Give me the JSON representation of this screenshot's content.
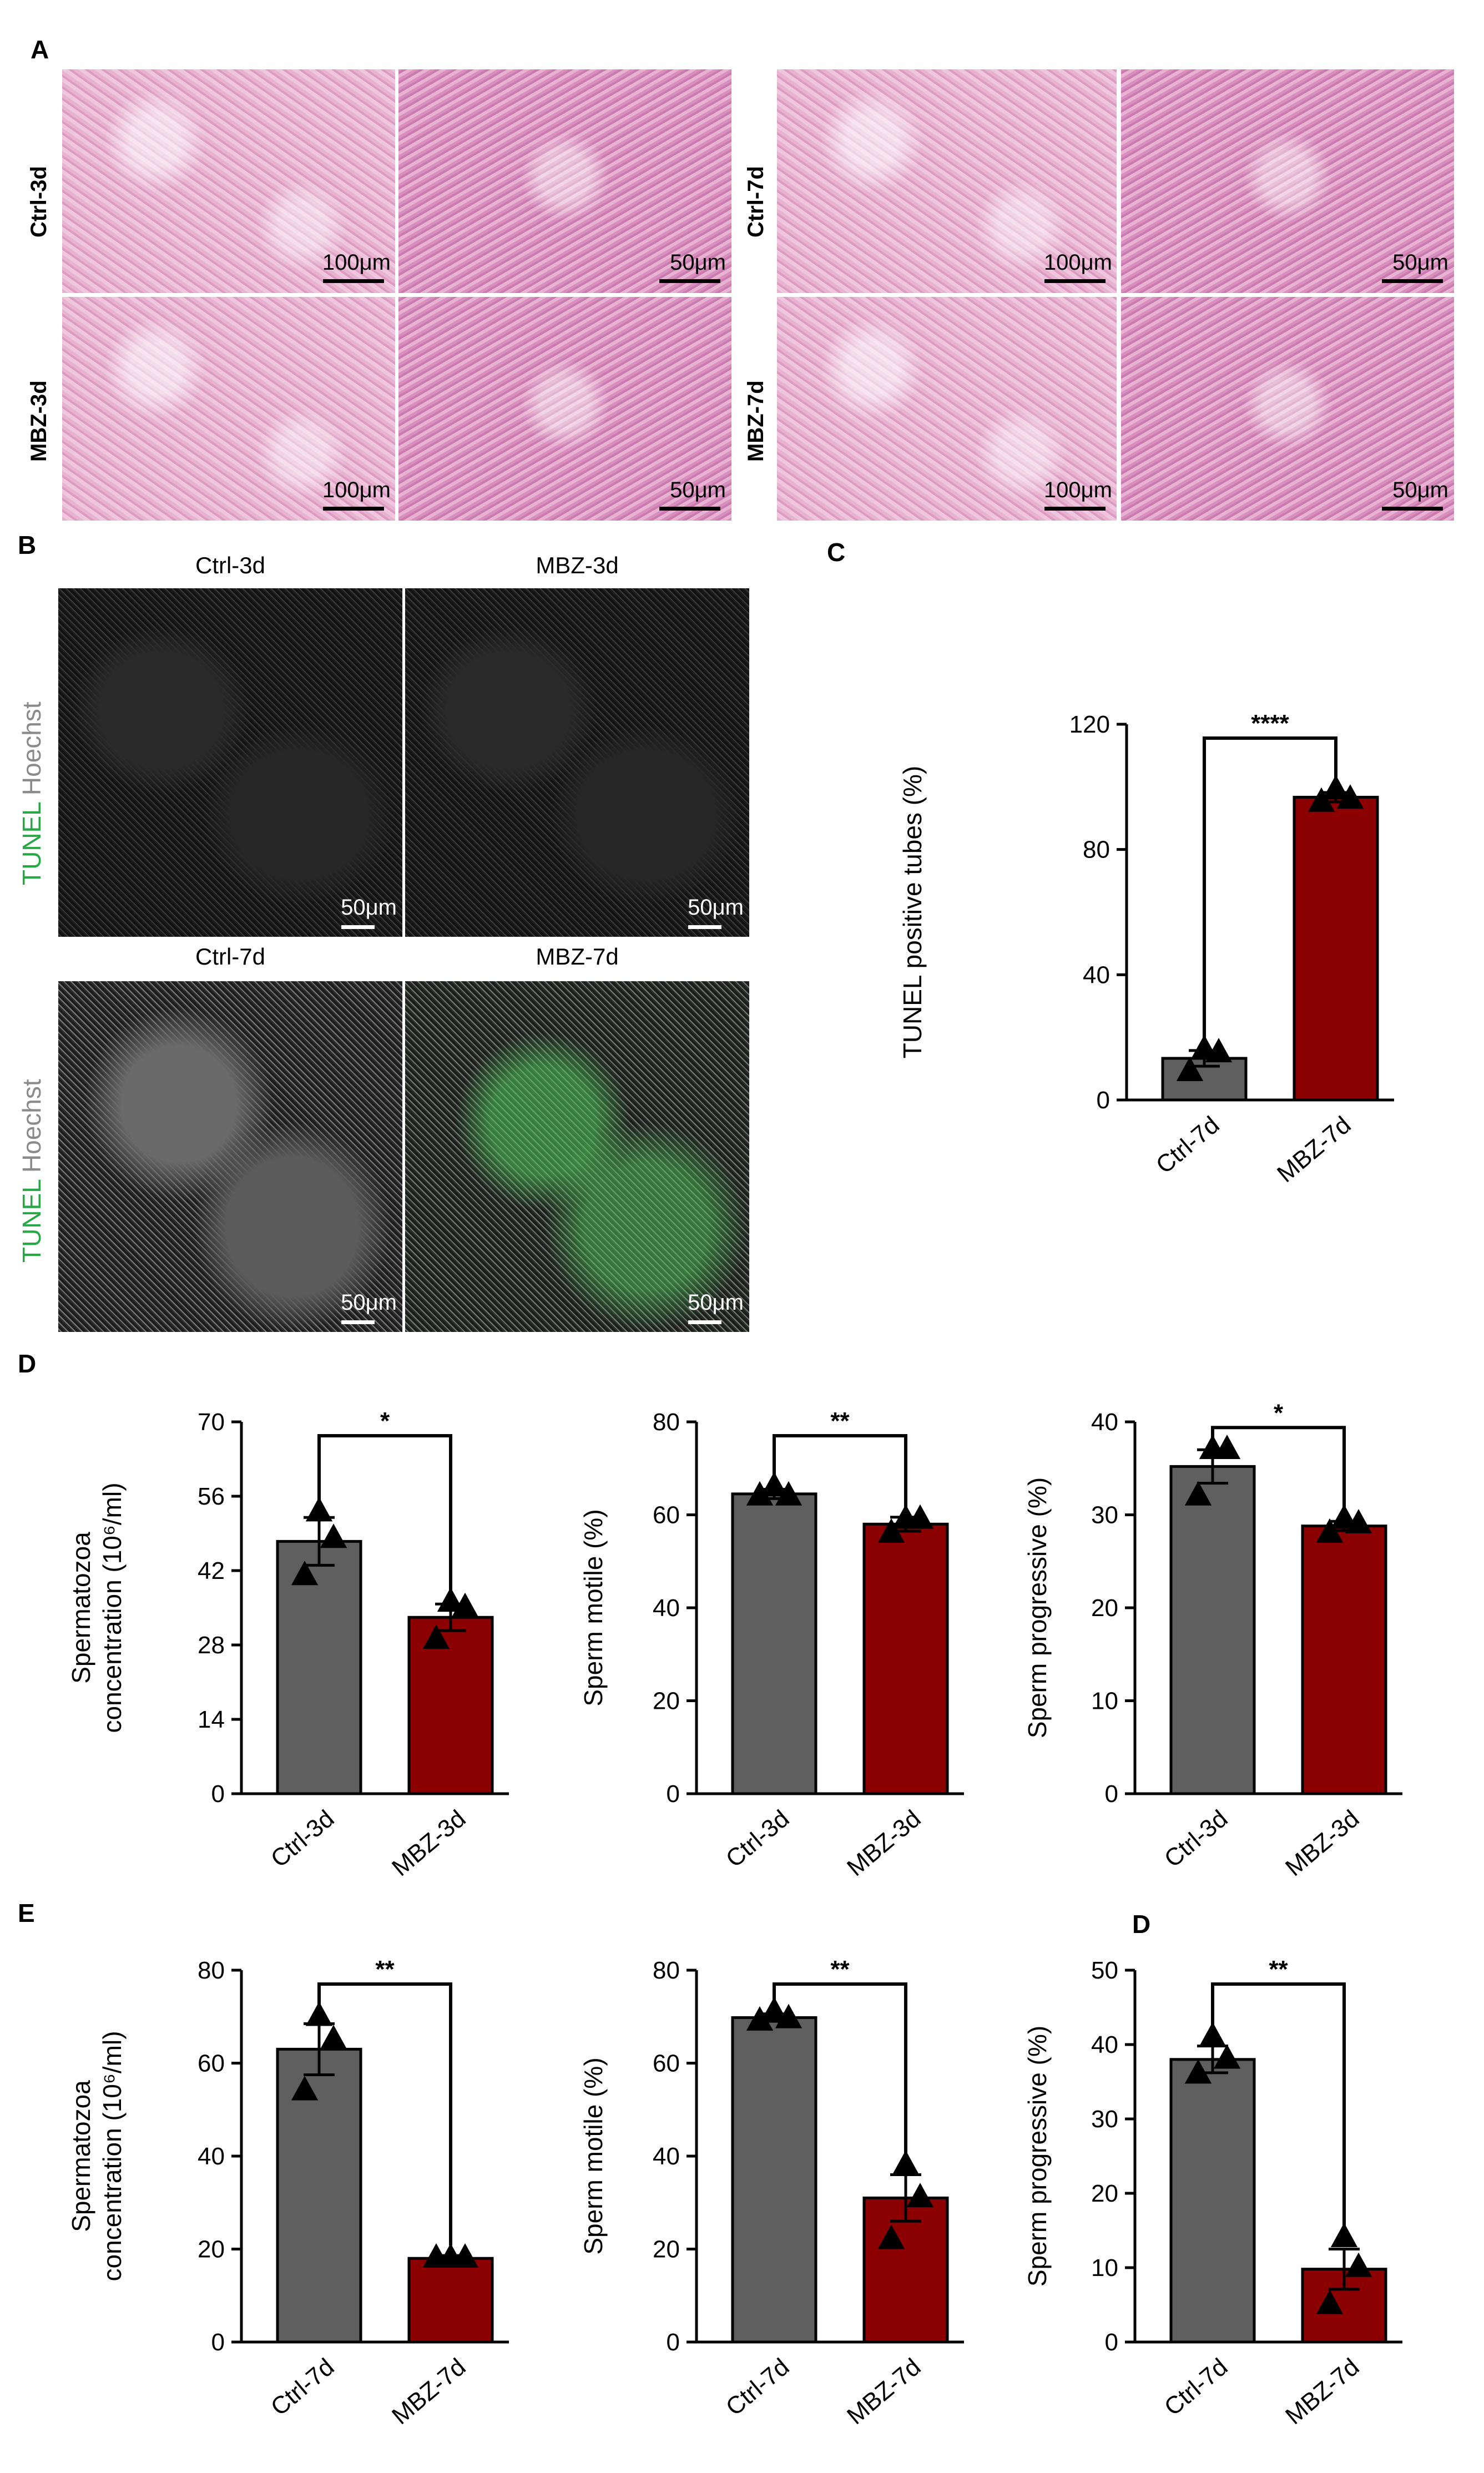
{
  "panel_letters": {
    "A": "A",
    "B": "B",
    "C": "C",
    "D": "D",
    "E": "E",
    "D2": "D"
  },
  "panel_a": {
    "row_labels": [
      "Ctrl-3d",
      "MBZ-3d",
      "Ctrl-7d",
      "MBZ-7d"
    ],
    "scale_labels": [
      "100μm",
      "50μm",
      "100μm",
      "50μm",
      "100μm",
      "50μm",
      "100μm",
      "50μm"
    ]
  },
  "panel_b": {
    "column_labels": [
      "Ctrl-3d",
      "MBZ-3d",
      "Ctrl-7d",
      "MBZ-7d"
    ],
    "stain_green": "TUNEL",
    "stain_gray": "Hoechst",
    "scale_labels": [
      "50μm",
      "50μm",
      "50μm",
      "50μm"
    ]
  },
  "colors": {
    "ctrl": "#5f5f5f",
    "mbz": "#8b0000",
    "stain_green": "#27a844"
  },
  "chart_data": [
    {
      "id": "c",
      "type": "bar",
      "categories": [
        "Ctrl-7d",
        "MBZ-7d"
      ],
      "values": [
        13.3,
        96.7
      ],
      "errors": [
        2.5,
        1.5
      ],
      "points": [
        [
          16,
          9,
          15
        ],
        [
          99,
          95,
          96
        ]
      ],
      "ylabel": "TUNEL positive tubes (%)",
      "ylim": [
        0,
        120
      ],
      "yticks": [
        "0",
        "40",
        "80",
        "120"
      ],
      "significance": "****",
      "ylabel_lines": [
        "TUNEL positive tubes (%)"
      ]
    },
    {
      "id": "d1",
      "type": "bar",
      "categories": [
        "Ctrl-3d",
        "MBZ-3d"
      ],
      "values": [
        47.5,
        33.2
      ],
      "errors": [
        4.5,
        2.5
      ],
      "points": [
        [
          53,
          41,
          48
        ],
        [
          36,
          29,
          35
        ]
      ],
      "ylabel": "Spermatozoa concentration (10⁶/ml)",
      "ylim": [
        0,
        70
      ],
      "yticks": [
        "0",
        "14",
        "28",
        "42",
        "56",
        "70"
      ],
      "significance": "*",
      "ylabel_lines": [
        "Spermatozoa",
        "concentration (10⁶/ml)"
      ]
    },
    {
      "id": "d2",
      "type": "bar",
      "categories": [
        "Ctrl-3d",
        "MBZ-3d"
      ],
      "values": [
        64.5,
        58
      ],
      "errors": [
        1,
        1.5
      ],
      "points": [
        [
          66,
          64,
          64
        ],
        [
          59,
          56,
          59
        ]
      ],
      "ylabel": "Sperm motile (%)",
      "ylim": [
        0,
        80
      ],
      "yticks": [
        "0",
        "20",
        "40",
        "60",
        "80"
      ],
      "significance": "**",
      "ylabel_lines": [
        "Sperm motile (%)"
      ]
    },
    {
      "id": "d3",
      "type": "bar",
      "categories": [
        "Ctrl-3d",
        "MBZ-3d"
      ],
      "values": [
        35.2,
        28.8
      ],
      "errors": [
        1.8,
        0.5
      ],
      "points": [
        [
          37,
          32,
          37
        ],
        [
          29.5,
          28,
          29
        ]
      ],
      "ylabel": "Sperm progressive (%)",
      "ylim": [
        0,
        40
      ],
      "yticks": [
        "0",
        "10",
        "20",
        "30",
        "40"
      ],
      "significance": "*",
      "ylabel_lines": [
        "Sperm progressive (%)"
      ]
    },
    {
      "id": "e1",
      "type": "bar",
      "categories": [
        "Ctrl-7d",
        "MBZ-7d"
      ],
      "values": [
        63,
        18
      ],
      "errors": [
        5.5,
        0.6
      ],
      "points": [
        [
          70,
          54,
          65
        ],
        [
          18,
          18,
          18
        ]
      ],
      "ylabel": "Spermatozoa concentration (10⁶/ml)",
      "ylim": [
        0,
        80
      ],
      "yticks": [
        "0",
        "20",
        "40",
        "60",
        "80"
      ],
      "significance": "**",
      "ylabel_lines": [
        "Spermatozoa",
        "concentration (10⁶/ml)"
      ]
    },
    {
      "id": "e2",
      "type": "bar",
      "categories": [
        "Ctrl-7d",
        "MBZ-7d"
      ],
      "values": [
        69.8,
        31
      ],
      "errors": [
        0.8,
        5
      ],
      "points": [
        [
          71,
          69,
          69.5
        ],
        [
          38,
          22,
          31
        ]
      ],
      "ylabel": "Sperm motile (%)",
      "ylim": [
        0,
        80
      ],
      "yticks": [
        "0",
        "20",
        "40",
        "60",
        "80"
      ],
      "significance": "**",
      "ylabel_lines": [
        "Sperm motile (%)"
      ]
    },
    {
      "id": "e3",
      "type": "bar",
      "categories": [
        "Ctrl-7d",
        "MBZ-7d"
      ],
      "values": [
        38,
        9.8
      ],
      "errors": [
        1.8,
        2.7
      ],
      "points": [
        [
          41,
          36,
          38
        ],
        [
          14,
          5,
          10
        ]
      ],
      "ylabel": "Sperm progressive (%)",
      "ylim": [
        0,
        50
      ],
      "yticks": [
        "0",
        "10",
        "20",
        "30",
        "40",
        "50"
      ],
      "significance": "**",
      "ylabel_lines": [
        "Sperm progressive (%)"
      ]
    }
  ]
}
